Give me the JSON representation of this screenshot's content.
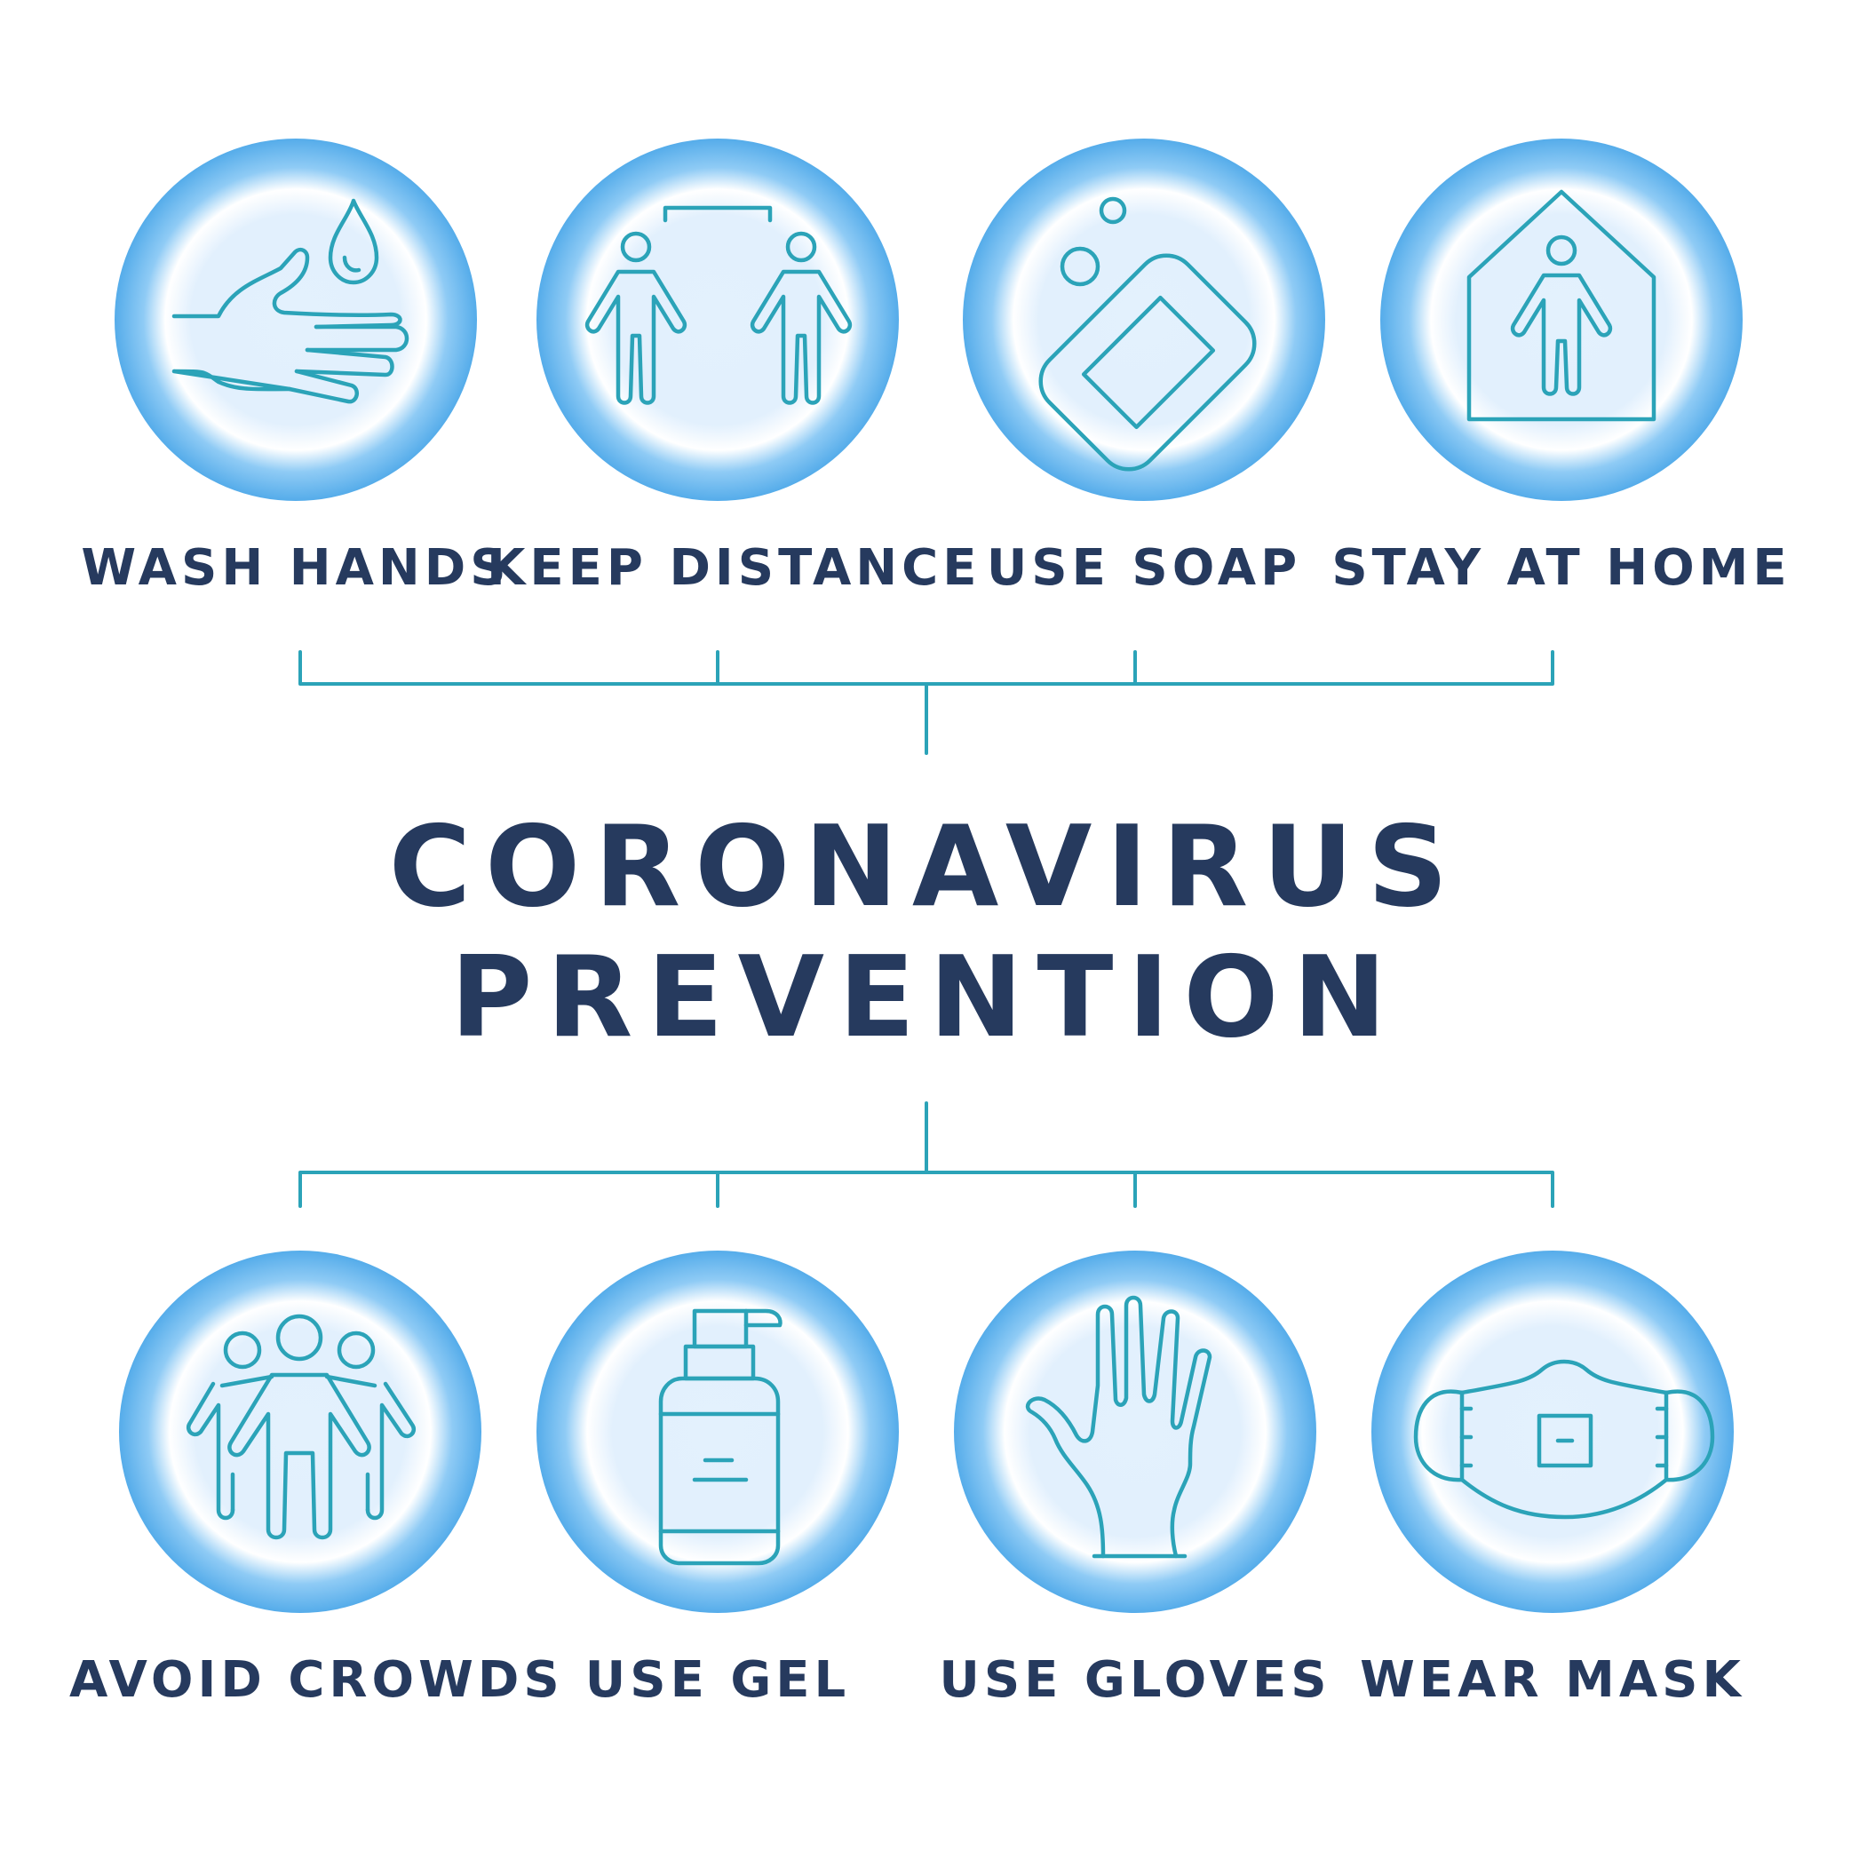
{
  "title": {
    "line1": "CORONAVIRUS",
    "line2": "PREVENTION"
  },
  "top_items": [
    {
      "label": "WASH HANDS",
      "icon": "hand-water-drop-icon"
    },
    {
      "label": "KEEP DISTANCE",
      "icon": "two-people-distance-icon"
    },
    {
      "label": "USE SOAP",
      "icon": "soap-bar-icon"
    },
    {
      "label": "STAY AT HOME",
      "icon": "person-in-house-icon"
    }
  ],
  "bottom_items": [
    {
      "label": "AVOID CROWDS",
      "icon": "crowd-icon"
    },
    {
      "label": "USE GEL",
      "icon": "gel-bottle-icon"
    },
    {
      "label": "USE GLOVES",
      "icon": "glove-icon"
    },
    {
      "label": "WEAR MASK",
      "icon": "face-mask-icon"
    }
  ],
  "colors": {
    "text": "#263a5e",
    "line": "#2ba3b8",
    "circle_outer": "#55acea",
    "circle_inner": "#e3f1fd",
    "background": "#ffffff"
  }
}
